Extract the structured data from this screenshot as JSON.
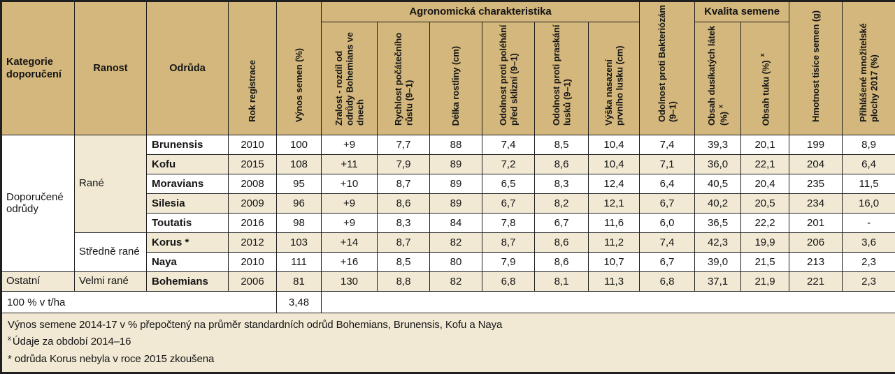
{
  "colors": {
    "header_bg": "#d3b77c",
    "stripe_bg": "#f1e9d4",
    "border": "#1f1f1f"
  },
  "table": {
    "header": {
      "col_kategorie": "Kategorie doporučení",
      "col_ranost": "Ranost",
      "col_odruda": "Odrůda",
      "col_rok": "Rok registrace",
      "col_vynos": "Výnos semen (%)",
      "group_agro": "Agronomická charakteristika",
      "agro_cols": [
        "Zralost - rozdíl od odrůdy Bohemians ve dnech",
        "Rychlost počátečního růstu (9–1)",
        "Délka rostliny (cm)",
        "Odolnost proti poléhání před sklizní (9–1)",
        "Odolnost proti praskání lusků (9–1)",
        "Výška nasazení prvního lusku (cm)"
      ],
      "col_bakteriozam": "Odolnost proti Bakteriózám (9–1)",
      "group_kvalita": "Kvalita semene",
      "kvalita_cols": [
        "Obsah dusíkatých látek (%)",
        "Obsah tuku (%)"
      ],
      "sup_marker": "x",
      "col_hmotnost": "Hmotnost tisíce semen (g)",
      "col_plochy": "Přihlášené množitelské plochy 2017 (%)"
    },
    "rows": [
      {
        "kategorie": {
          "text": "Doporučené odrůdy",
          "rowspan": 7,
          "shade": false
        },
        "ranost": {
          "text": "Rané",
          "rowspan": 5,
          "shade": true
        },
        "variety": "Brunensis",
        "shade": false,
        "values": [
          "2010",
          "100",
          "+9",
          "7,7",
          "88",
          "7,4",
          "8,5",
          "10,4",
          "7,4",
          "39,3",
          "20,1",
          "199",
          "8,9"
        ]
      },
      {
        "variety": "Kofu",
        "shade": true,
        "values": [
          "2015",
          "108",
          "+11",
          "7,9",
          "89",
          "7,2",
          "8,6",
          "10,4",
          "7,1",
          "36,0",
          "22,1",
          "204",
          "6,4"
        ]
      },
      {
        "variety": "Moravians",
        "shade": false,
        "values": [
          "2008",
          "95",
          "+10",
          "8,7",
          "89",
          "6,5",
          "8,3",
          "12,4",
          "6,4",
          "40,5",
          "20,4",
          "235",
          "11,5"
        ]
      },
      {
        "variety": "Silesia",
        "shade": true,
        "values": [
          "2009",
          "96",
          "+9",
          "8,6",
          "89",
          "6,7",
          "8,2",
          "12,1",
          "6,7",
          "40,2",
          "20,5",
          "234",
          "16,0"
        ]
      },
      {
        "variety": "Toutatis",
        "shade": false,
        "values": [
          "2016",
          "98",
          "+9",
          "8,3",
          "84",
          "7,8",
          "6,7",
          "11,6",
          "6,0",
          "36,5",
          "22,2",
          "201",
          "-"
        ]
      },
      {
        "ranost": {
          "text": "Středně rané",
          "rowspan": 2,
          "shade": false
        },
        "variety": "Korus *",
        "shade": true,
        "values": [
          "2012",
          "103",
          "+14",
          "8,7",
          "82",
          "8,7",
          "8,6",
          "11,2",
          "7,4",
          "42,3",
          "19,9",
          "206",
          "3,6"
        ]
      },
      {
        "variety": "Naya",
        "shade": false,
        "values": [
          "2010",
          "111",
          "+16",
          "8,5",
          "80",
          "7,9",
          "8,6",
          "10,7",
          "6,7",
          "39,0",
          "21,5",
          "213",
          "2,3"
        ]
      },
      {
        "kategorie": {
          "text": "Ostatní",
          "rowspan": 1,
          "shade": true
        },
        "ranost": {
          "text": "Velmi rané",
          "rowspan": 1,
          "shade": true
        },
        "variety": "Bohemians",
        "shade": true,
        "values": [
          "2006",
          "81",
          "130",
          "8,8",
          "82",
          "6,8",
          "8,1",
          "11,3",
          "6,8",
          "37,1",
          "21,9",
          "221",
          "2,3"
        ]
      }
    ],
    "basis_row": {
      "label": "100 % v t/ha",
      "value": "3,48"
    },
    "footnotes": [
      {
        "marker": "",
        "text": "Výnos semene 2014-17 v % přepočtený na průměr standardních odrůd Bohemians, Brunensis, Kofu a Naya"
      },
      {
        "marker": "x",
        "text": "Údaje za období 2014–16"
      },
      {
        "marker": "*",
        "text": "odrůda Korus nebyla v roce 2015 zkoušena"
      }
    ]
  }
}
